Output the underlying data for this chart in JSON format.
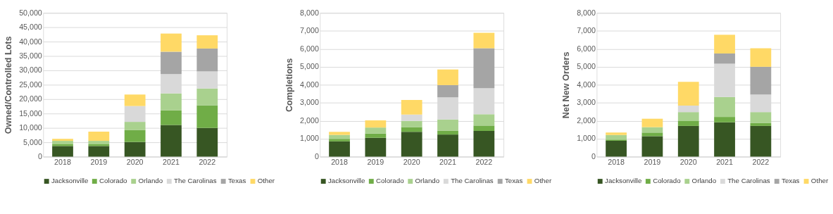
{
  "chart_data": [
    {
      "type": "bar",
      "stacked": true,
      "ylabel": "Owned/Controlled Lots",
      "categories": [
        "2018",
        "2019",
        "2020",
        "2021",
        "2022"
      ],
      "ylim": [
        0,
        50000
      ],
      "yticks": [
        0,
        {
          "value": 5000,
          "label": "5,000"
        },
        {
          "value": 10000,
          "label": "10,000"
        },
        {
          "value": 15000,
          "label": "15,000"
        },
        {
          "value": 20000,
          "label": "20,000"
        },
        {
          "value": 25000,
          "label": "25,000"
        },
        {
          "value": 30000,
          "label": "30,000"
        },
        {
          "value": 35000,
          "label": "35,000"
        },
        {
          "value": 40000,
          "label": "40,000"
        },
        {
          "value": 45000,
          "label": "45,000"
        },
        {
          "value": 50000,
          "label": "50,000"
        }
      ],
      "grid": "y",
      "legend": "bottom",
      "series": [
        {
          "name": "Jacksonville",
          "color": "#375623",
          "values": [
            3700,
            3700,
            5100,
            11000,
            10000
          ]
        },
        {
          "name": "Colorado",
          "color": "#70ad47",
          "values": [
            600,
            600,
            4200,
            5100,
            7800
          ]
        },
        {
          "name": "Orlando",
          "color": "#a9d18e",
          "values": [
            1200,
            1200,
            2800,
            5900,
            5900
          ]
        },
        {
          "name": "The Carolinas",
          "color": "#d9d9d9",
          "values": [
            null,
            null,
            5500,
            6700,
            5900
          ]
        },
        {
          "name": "Texas",
          "color": "#a5a5a5",
          "values": [
            null,
            null,
            null,
            7800,
            8000
          ]
        },
        {
          "name": "Other",
          "color": "#ffd966",
          "values": [
            700,
            3200,
            4000,
            6300,
            4600
          ]
        }
      ]
    },
    {
      "type": "bar",
      "stacked": true,
      "ylabel": "Completions",
      "categories": [
        "2018",
        "2019",
        "2020",
        "2021",
        "2022"
      ],
      "ylim": [
        0,
        8000
      ],
      "yticks": [
        0,
        {
          "value": 1000,
          "label": "1,000"
        },
        {
          "value": 2000,
          "label": "2,000"
        },
        {
          "value": 3000,
          "label": "3,000"
        },
        {
          "value": 4000,
          "label": "4,000"
        },
        {
          "value": 5000,
          "label": "5,000"
        },
        {
          "value": 6000,
          "label": "6,000"
        },
        {
          "value": 7000,
          "label": "7,000"
        },
        {
          "value": 8000,
          "label": "8,000"
        }
      ],
      "grid": "y",
      "legend": "bottom",
      "series": [
        {
          "name": "Jacksonville",
          "color": "#375623",
          "values": [
            850,
            1050,
            1380,
            1230,
            1430
          ]
        },
        {
          "name": "Colorado",
          "color": "#70ad47",
          "values": [
            140,
            240,
            270,
            220,
            300
          ]
        },
        {
          "name": "Orlando",
          "color": "#a9d18e",
          "values": [
            220,
            330,
            340,
            620,
            630
          ]
        },
        {
          "name": "The Carolinas",
          "color": "#d9d9d9",
          "values": [
            null,
            null,
            350,
            1230,
            1450
          ]
        },
        {
          "name": "Texas",
          "color": "#a5a5a5",
          "values": [
            null,
            null,
            null,
            680,
            2220
          ]
        },
        {
          "name": "Other",
          "color": "#ffd966",
          "values": [
            170,
            400,
            810,
            870,
            860
          ]
        }
      ]
    },
    {
      "type": "bar",
      "stacked": true,
      "ylabel": "Net New Orders",
      "categories": [
        "2018",
        "2019",
        "2020",
        "2021",
        "2022"
      ],
      "ylim": [
        0,
        8000
      ],
      "yticks": [
        0,
        {
          "value": 1000,
          "label": "1,000"
        },
        {
          "value": 2000,
          "label": "2,000"
        },
        {
          "value": 3000,
          "label": "3,000"
        },
        {
          "value": 4000,
          "label": "4,000"
        },
        {
          "value": 5000,
          "label": "5,000"
        },
        {
          "value": 6000,
          "label": "6,000"
        },
        {
          "value": 7000,
          "label": "7,000"
        },
        {
          "value": 8000,
          "label": "8,000"
        }
      ],
      "grid": "y",
      "legend": "bottom",
      "series": [
        {
          "name": "Jacksonville",
          "color": "#375623",
          "values": [
            880,
            1140,
            1710,
            1910,
            1710
          ]
        },
        {
          "name": "Colorado",
          "color": "#70ad47",
          "values": [
            70,
            200,
            270,
            300,
            170
          ]
        },
        {
          "name": "Orlando",
          "color": "#a9d18e",
          "values": [
            260,
            300,
            500,
            1110,
            600
          ]
        },
        {
          "name": "The Carolinas",
          "color": "#d9d9d9",
          "values": [
            null,
            null,
            360,
            1850,
            980
          ]
        },
        {
          "name": "Texas",
          "color": "#a5a5a5",
          "values": [
            null,
            null,
            null,
            570,
            1540
          ]
        },
        {
          "name": "Other",
          "color": "#ffd966",
          "values": [
            130,
            470,
            1320,
            1040,
            1030
          ]
        }
      ]
    }
  ]
}
